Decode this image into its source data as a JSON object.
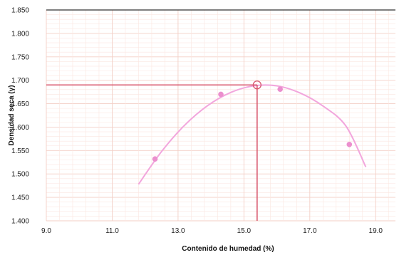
{
  "chart_data": {
    "type": "scatter",
    "title": "",
    "xlabel": "Contenido de humedad (%)",
    "ylabel": "Densidad seca (γ)",
    "xlim": [
      9.0,
      19.6
    ],
    "ylim": [
      1.4,
      1.85
    ],
    "x_ticks": [
      "9.0",
      "11.0",
      "13.0",
      "15.0",
      "17.0",
      "19.0"
    ],
    "y_ticks": [
      "1.850",
      "1.800",
      "1.750",
      "1.700",
      "1.650",
      "1.600",
      "1.550",
      "1.500",
      "1.450",
      "1.400"
    ],
    "grid": true,
    "series": [
      {
        "kind": "points",
        "x": [
          12.3,
          14.3,
          16.1,
          18.2
        ],
        "y": [
          1.532,
          1.67,
          1.681,
          1.563
        ]
      },
      {
        "kind": "fitted-curve",
        "x": [
          11.8,
          12.5,
          13.2,
          13.9,
          14.6,
          15.3,
          16.0,
          16.7,
          17.4,
          18.1,
          18.7
        ],
        "y": [
          1.478,
          1.548,
          1.604,
          1.646,
          1.674,
          1.688,
          1.688,
          1.673,
          1.645,
          1.602,
          1.515
        ]
      }
    ],
    "optimum": {
      "x": 15.4,
      "y": 1.69
    },
    "colors": {
      "curve": "#f2a6dd",
      "points": "#eb8fce",
      "optimum_lines": "#d8576e",
      "grid_minor": "#fbe6e0",
      "grid_major": "#f3cfc6",
      "top_line": "#333333"
    }
  }
}
